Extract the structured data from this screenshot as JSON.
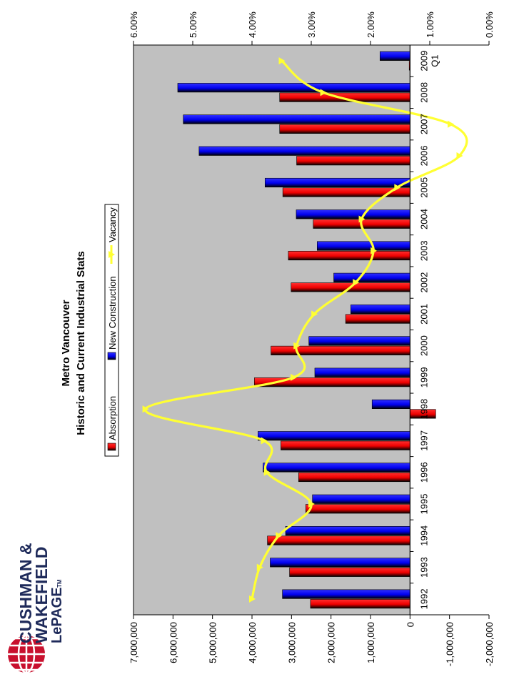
{
  "logo": {
    "line1": "CUSHMAN &",
    "line2": "WAKEFIELD",
    "line3": "LePAGE",
    "tm": "TM"
  },
  "chart_data": {
    "type": "bar",
    "title": "Metro Vancouver",
    "subtitle": "Historic and Current Industrial Stats",
    "categories": [
      "1992",
      "1993",
      "1994",
      "1995",
      "1996",
      "1997",
      "1998",
      "1999",
      "2000",
      "2001",
      "2002",
      "2003",
      "2004",
      "2005",
      "2006",
      "2007",
      "2008",
      "2009 Q1"
    ],
    "series": [
      {
        "name": "Absorption",
        "kind": "bar",
        "axis": "left",
        "color": "#ff0000",
        "values": [
          2520000,
          3050000,
          3610000,
          2640000,
          2820000,
          3270000,
          -650000,
          3940000,
          3520000,
          1630000,
          3010000,
          3080000,
          2450000,
          3220000,
          2870000,
          3300000,
          3300000,
          20000
        ]
      },
      {
        "name": "New Construction",
        "kind": "bar",
        "axis": "left",
        "color": "#0000ff",
        "values": [
          3230000,
          3540000,
          3150000,
          2470000,
          3720000,
          3850000,
          960000,
          2410000,
          2560000,
          1500000,
          1930000,
          2350000,
          2880000,
          3670000,
          5340000,
          5740000,
          5880000,
          760000
        ]
      },
      {
        "name": "Vacancy",
        "kind": "line",
        "axis": "right",
        "color": "#ffff33",
        "values": [
          4.0,
          3.87,
          3.55,
          3.0,
          3.75,
          3.8,
          5.8,
          3.3,
          3.25,
          2.95,
          2.25,
          1.95,
          2.15,
          1.55,
          0.5,
          0.65,
          2.8,
          3.5
        ]
      }
    ],
    "y_left": {
      "min": -2000000,
      "max": 7000000,
      "step": 1000000,
      "tick_labels": [
        "-2,000,000",
        "-1,000,000",
        "0",
        "1,000,000",
        "2,000,000",
        "3,000,000",
        "4,000,000",
        "5,000,000",
        "6,000,000",
        "7,000,000"
      ]
    },
    "y_right": {
      "min": 0,
      "max": 6,
      "step": 1,
      "tick_labels": [
        "0.00%",
        "1.00%",
        "2.00%",
        "3.00%",
        "4.00%",
        "5.00%",
        "6.00%"
      ]
    },
    "grid": false,
    "legend": "top",
    "plot_background": "#c0c0c0",
    "orientation": "rotated-90-clockwise"
  }
}
